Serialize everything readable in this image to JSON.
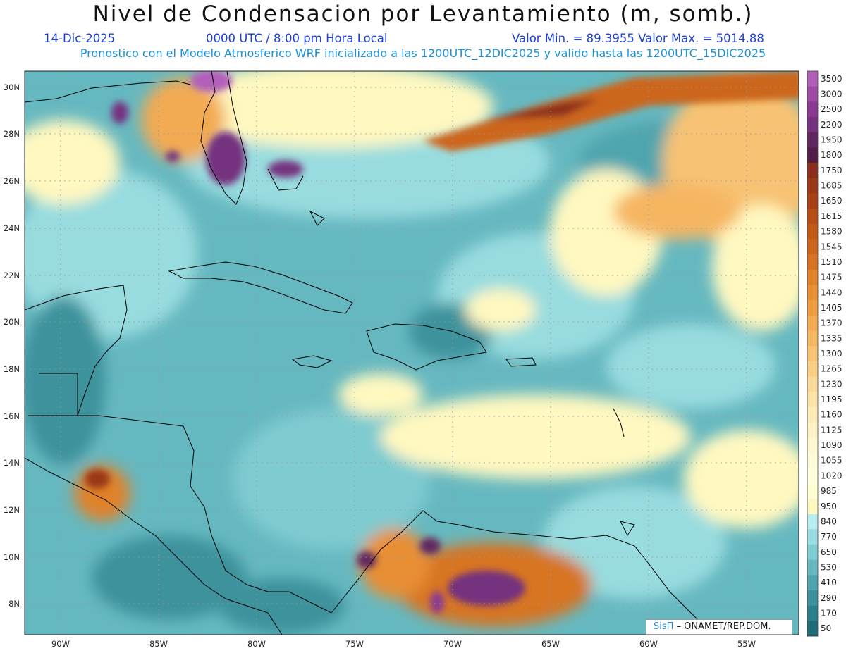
{
  "header": {
    "title": "Nivel de Condensacion por Levantamiento (m, somb.)",
    "date": "14-Dic-2025",
    "time": "0000 UTC / 8:00 pm Hora Local",
    "minmax": "Valor Min. = 89.3955   Valor Max. = 5014.88",
    "model_info": "Pronostico con el Modelo Atmosferico WRF inicializado a las 1200UTC_12DIC2025 y valido hasta las  1200UTC_15DIC2025"
  },
  "axes": {
    "lat_labels": [
      "30N",
      "28N",
      "26N",
      "24N",
      "22N",
      "20N",
      "18N",
      "16N",
      "14N",
      "12N",
      "10N",
      "8N"
    ],
    "lon_labels": [
      "90W",
      "85W",
      "80W",
      "75W",
      "70W",
      "65W",
      "60W",
      "55W"
    ]
  },
  "colorbar": {
    "labels": [
      "3500",
      "3000",
      "2500",
      "2200",
      "1950",
      "1800",
      "1750",
      "1685",
      "1650",
      "1615",
      "1580",
      "1545",
      "1510",
      "1475",
      "1440",
      "1405",
      "1370",
      "1335",
      "1300",
      "1265",
      "1230",
      "1195",
      "1160",
      "1125",
      "1090",
      "1055",
      "1020",
      "985",
      "950",
      "840",
      "770",
      "650",
      "530",
      "410",
      "290",
      "170",
      "50"
    ],
    "colors": [
      "#b25fb9",
      "#a04aa6",
      "#8a3a92",
      "#75307e",
      "#60265f",
      "#541d48",
      "#8c2e1c",
      "#9a3716",
      "#a84214",
      "#b74e15",
      "#c25a18",
      "#cc661d",
      "#d77424",
      "#e0822c",
      "#e88f35",
      "#ef9d42",
      "#f2aa52",
      "#f5b662",
      "#f7c273",
      "#f8cd84",
      "#fad895",
      "#fbe2a6",
      "#fcebb7",
      "#fdf2c4",
      "#fef8d0",
      "#fefcd8",
      "#ffffe0",
      "#ffffd4",
      "#fff8c0",
      "#b8ecef",
      "#98dcdf",
      "#7ecbd0",
      "#66b8c0",
      "#50a5ae",
      "#3c929c",
      "#2b7f8a",
      "#1f6c78"
    ]
  },
  "credit": {
    "sis": "SisΠ",
    "text": " – ONAMET/REP.DOM."
  }
}
